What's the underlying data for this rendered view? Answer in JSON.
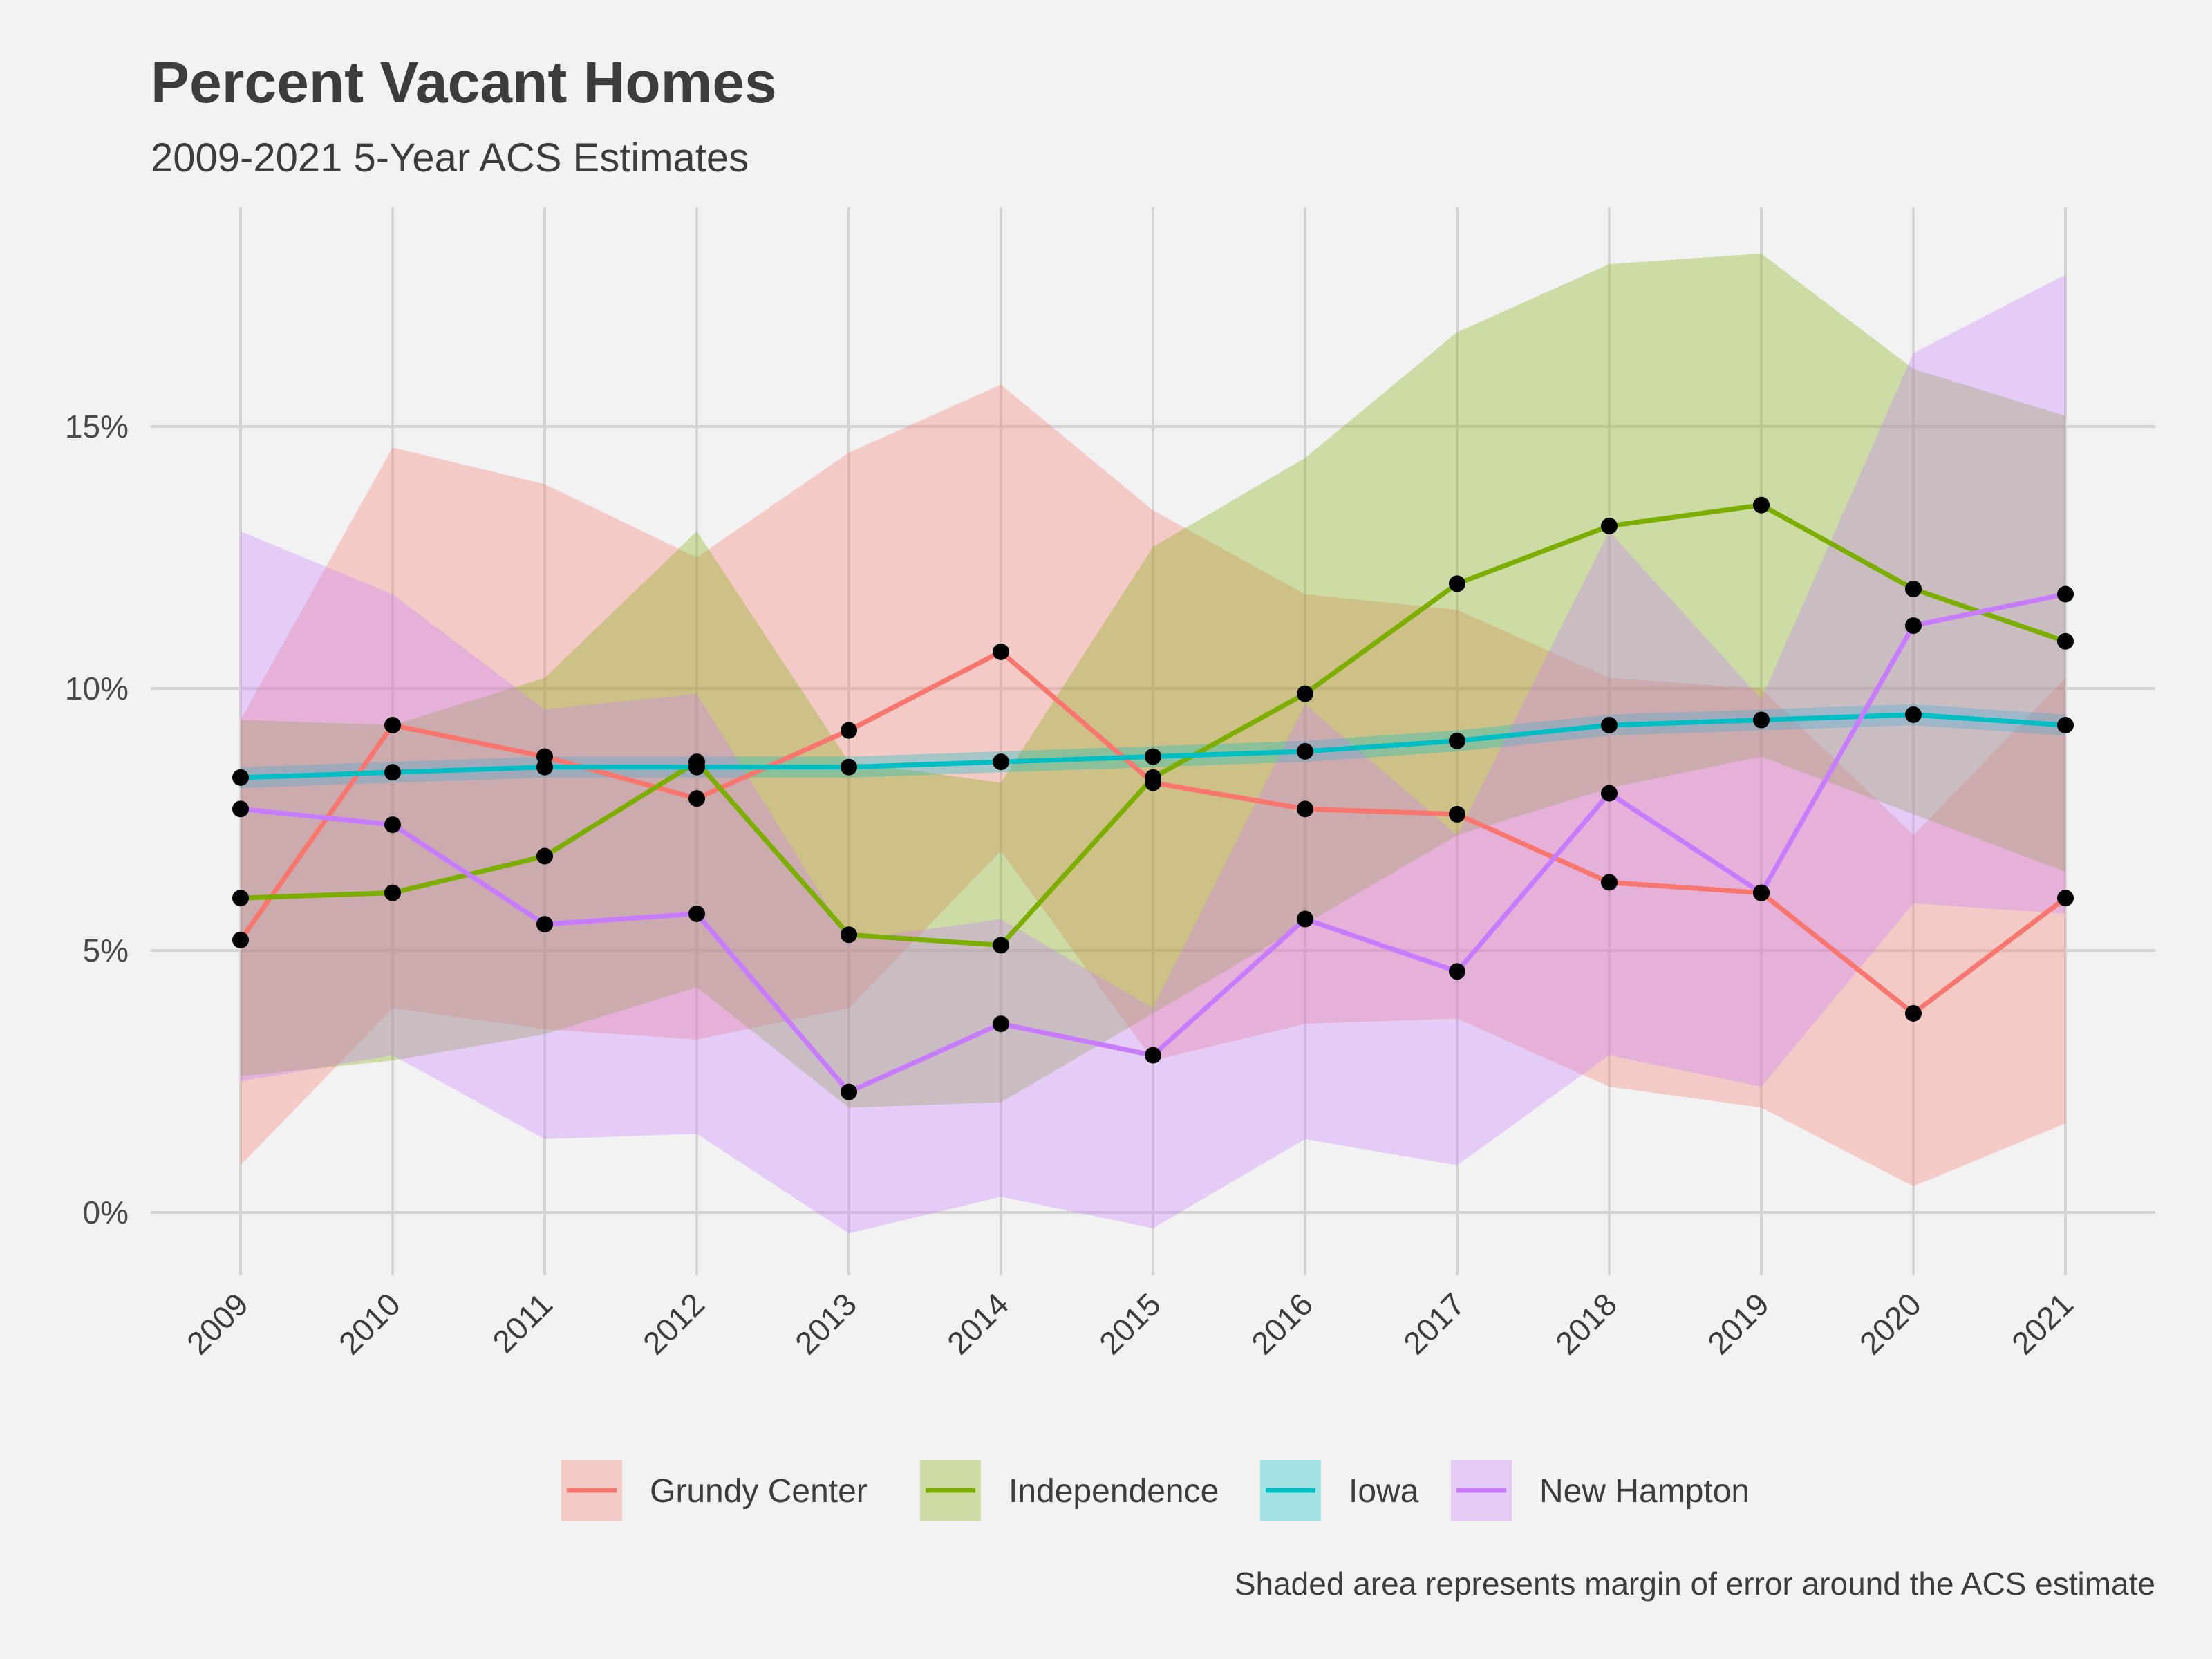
{
  "chart_data": {
    "type": "line",
    "title": "Percent Vacant Homes",
    "subtitle": "2009-2021 5-Year ACS Estimates",
    "caption": "Shaded area represents margin of error around the ACS estimate",
    "xlabel": "",
    "ylabel": "",
    "x": [
      "2009",
      "2010",
      "2011",
      "2012",
      "2013",
      "2014",
      "2015",
      "2016",
      "2017",
      "2018",
      "2019",
      "2020",
      "2021"
    ],
    "ylim": [
      -1.5,
      19.5
    ],
    "yticks": [
      0,
      5,
      10,
      15
    ],
    "ytick_labels": [
      "0%",
      "5%",
      "10%",
      "15%"
    ],
    "grid": true,
    "legend_position": "bottom",
    "series": [
      {
        "name": "Grundy Center",
        "color": "#f8766d",
        "values": [
          5.2,
          9.3,
          8.7,
          7.9,
          9.2,
          10.7,
          8.2,
          7.7,
          7.6,
          6.3,
          6.1,
          3.8,
          6.0
        ],
        "lower": [
          0.9,
          3.9,
          3.5,
          3.3,
          3.9,
          6.9,
          2.9,
          3.6,
          3.7,
          2.4,
          2.0,
          0.5,
          1.7
        ],
        "upper": [
          9.4,
          14.6,
          13.9,
          12.5,
          14.5,
          15.8,
          13.4,
          11.8,
          11.5,
          10.2,
          10.0,
          7.2,
          10.2
        ]
      },
      {
        "name": "Independence",
        "color": "#7cae00",
        "values": [
          6.0,
          6.1,
          6.8,
          8.6,
          5.3,
          5.1,
          8.3,
          9.9,
          12.0,
          13.1,
          13.5,
          11.9,
          10.9
        ],
        "lower": [
          2.6,
          2.9,
          3.4,
          4.3,
          2.0,
          2.1,
          3.8,
          5.5,
          7.2,
          8.1,
          8.7,
          7.6,
          6.5
        ],
        "upper": [
          9.4,
          9.3,
          10.2,
          13.0,
          8.6,
          8.2,
          12.7,
          14.4,
          16.8,
          18.1,
          18.3,
          16.1,
          15.2
        ]
      },
      {
        "name": "Iowa",
        "color": "#00bfc4",
        "values": [
          8.3,
          8.4,
          8.5,
          8.5,
          8.5,
          8.6,
          8.7,
          8.8,
          9.0,
          9.3,
          9.4,
          9.5,
          9.3
        ],
        "lower": [
          8.1,
          8.2,
          8.3,
          8.3,
          8.3,
          8.4,
          8.5,
          8.6,
          8.8,
          9.1,
          9.2,
          9.3,
          9.1
        ],
        "upper": [
          8.5,
          8.6,
          8.7,
          8.7,
          8.7,
          8.8,
          8.9,
          9.0,
          9.2,
          9.5,
          9.6,
          9.7,
          9.5
        ]
      },
      {
        "name": "New Hampton",
        "color": "#c77cff",
        "values": [
          7.7,
          7.4,
          5.5,
          5.7,
          2.3,
          3.6,
          3.0,
          5.6,
          4.6,
          8.0,
          6.1,
          11.2,
          11.8
        ],
        "lower": [
          2.5,
          3.0,
          1.4,
          1.5,
          -0.4,
          0.3,
          -0.3,
          1.4,
          0.9,
          3.0,
          2.4,
          5.9,
          5.7
        ],
        "upper": [
          13.0,
          11.8,
          9.6,
          9.9,
          5.2,
          5.6,
          3.9,
          9.7,
          7.2,
          13.0,
          9.8,
          16.4,
          17.9
        ]
      }
    ]
  }
}
